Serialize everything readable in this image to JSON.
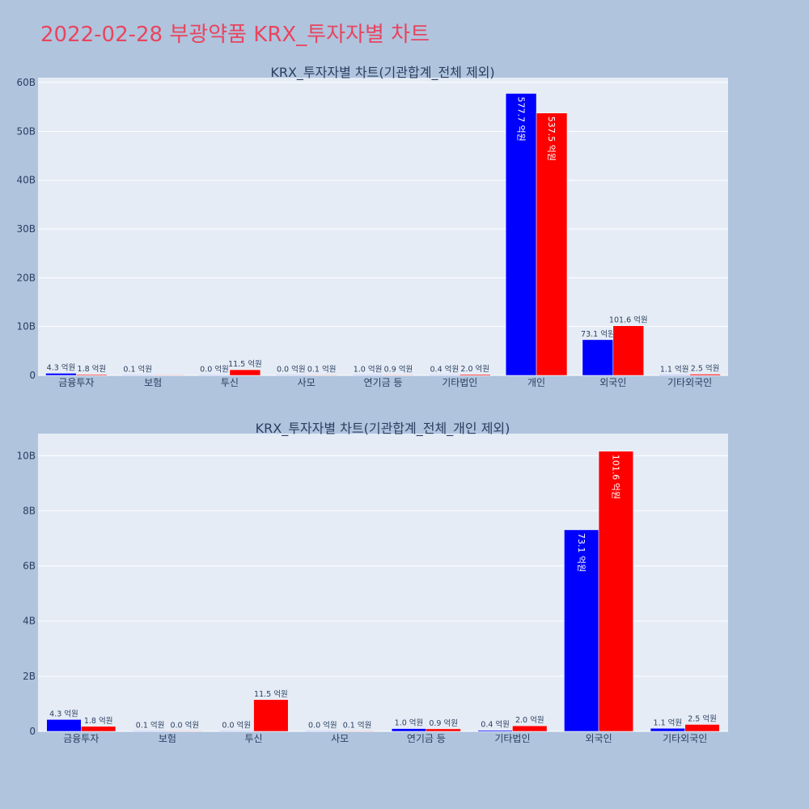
{
  "page": {
    "title": "2022-02-28 부광약품 KRX_투자자별 차트",
    "colors": {
      "background": "#b0c4de",
      "plot_bg": "#e5ecf6",
      "title": "#e8455f",
      "series_a": "#0000ff",
      "series_b": "#ff0000"
    }
  },
  "chart_data": [
    {
      "type": "bar",
      "title": "KRX_투자자별 차트(기관합계_전체 제외)",
      "categories": [
        "금융투자",
        "보험",
        "투신",
        "사모",
        "연기금 등",
        "기타법인",
        "개인",
        "외국인",
        "기타외국인"
      ],
      "series": [
        {
          "color": "#0000ff",
          "values": [
            0.43,
            0.01,
            0.0,
            0.0,
            0.1,
            0.04,
            57.77,
            7.31,
            0.11
          ],
          "labels": [
            "4.3 억원",
            "0.1 억원",
            "0.0 억원",
            "0.0 억원",
            "1.0 억원",
            "0.4 억원",
            "577.7 억원",
            "73.1 억원",
            "1.1 억원"
          ]
        },
        {
          "color": "#ff0000",
          "values": [
            0.18,
            0.0,
            1.15,
            0.01,
            0.09,
            0.2,
            53.75,
            10.16,
            0.25
          ],
          "labels": [
            "1.8 억원",
            "",
            "11.5 억원",
            "0.1 억원",
            "0.9 억원",
            "2.0 억원",
            "537.5 억원",
            "101.6 억원",
            "2.5 억원"
          ]
        }
      ],
      "ylim": [
        0,
        61
      ],
      "yticks": [
        0,
        10,
        20,
        30,
        40,
        50,
        60
      ],
      "ytick_labels": [
        "0",
        "10B",
        "20B",
        "30B",
        "40B",
        "50B",
        "60B"
      ],
      "grid": true
    },
    {
      "type": "bar",
      "title": "KRX_투자자별 차트(기관합계_전체_개인 제외)",
      "categories": [
        "금융투자",
        "보험",
        "투신",
        "사모",
        "연기금 등",
        "기타법인",
        "외국인",
        "기타외국인"
      ],
      "series": [
        {
          "color": "#0000ff",
          "values": [
            0.43,
            0.01,
            0.0,
            0.0,
            0.1,
            0.04,
            7.31,
            0.11
          ],
          "labels": [
            "4.3 억원",
            "0.1 억원",
            "0.0 억원",
            "0.0 억원",
            "1.0 억원",
            "0.4 억원",
            "73.1 억원",
            "1.1 억원"
          ]
        },
        {
          "color": "#ff0000",
          "values": [
            0.18,
            0.0,
            1.15,
            0.01,
            0.09,
            0.2,
            10.16,
            0.25
          ],
          "labels": [
            "1.8 억원",
            "0.0 억원",
            "11.5 억원",
            "0.1 억원",
            "0.9 억원",
            "2.0 억원",
            "101.6 억원",
            "2.5 억원"
          ]
        }
      ],
      "ylim": [
        0,
        10.8
      ],
      "yticks": [
        0,
        2,
        4,
        6,
        8,
        10
      ],
      "ytick_labels": [
        "0",
        "2B",
        "4B",
        "6B",
        "8B",
        "10B"
      ],
      "grid": true
    }
  ]
}
